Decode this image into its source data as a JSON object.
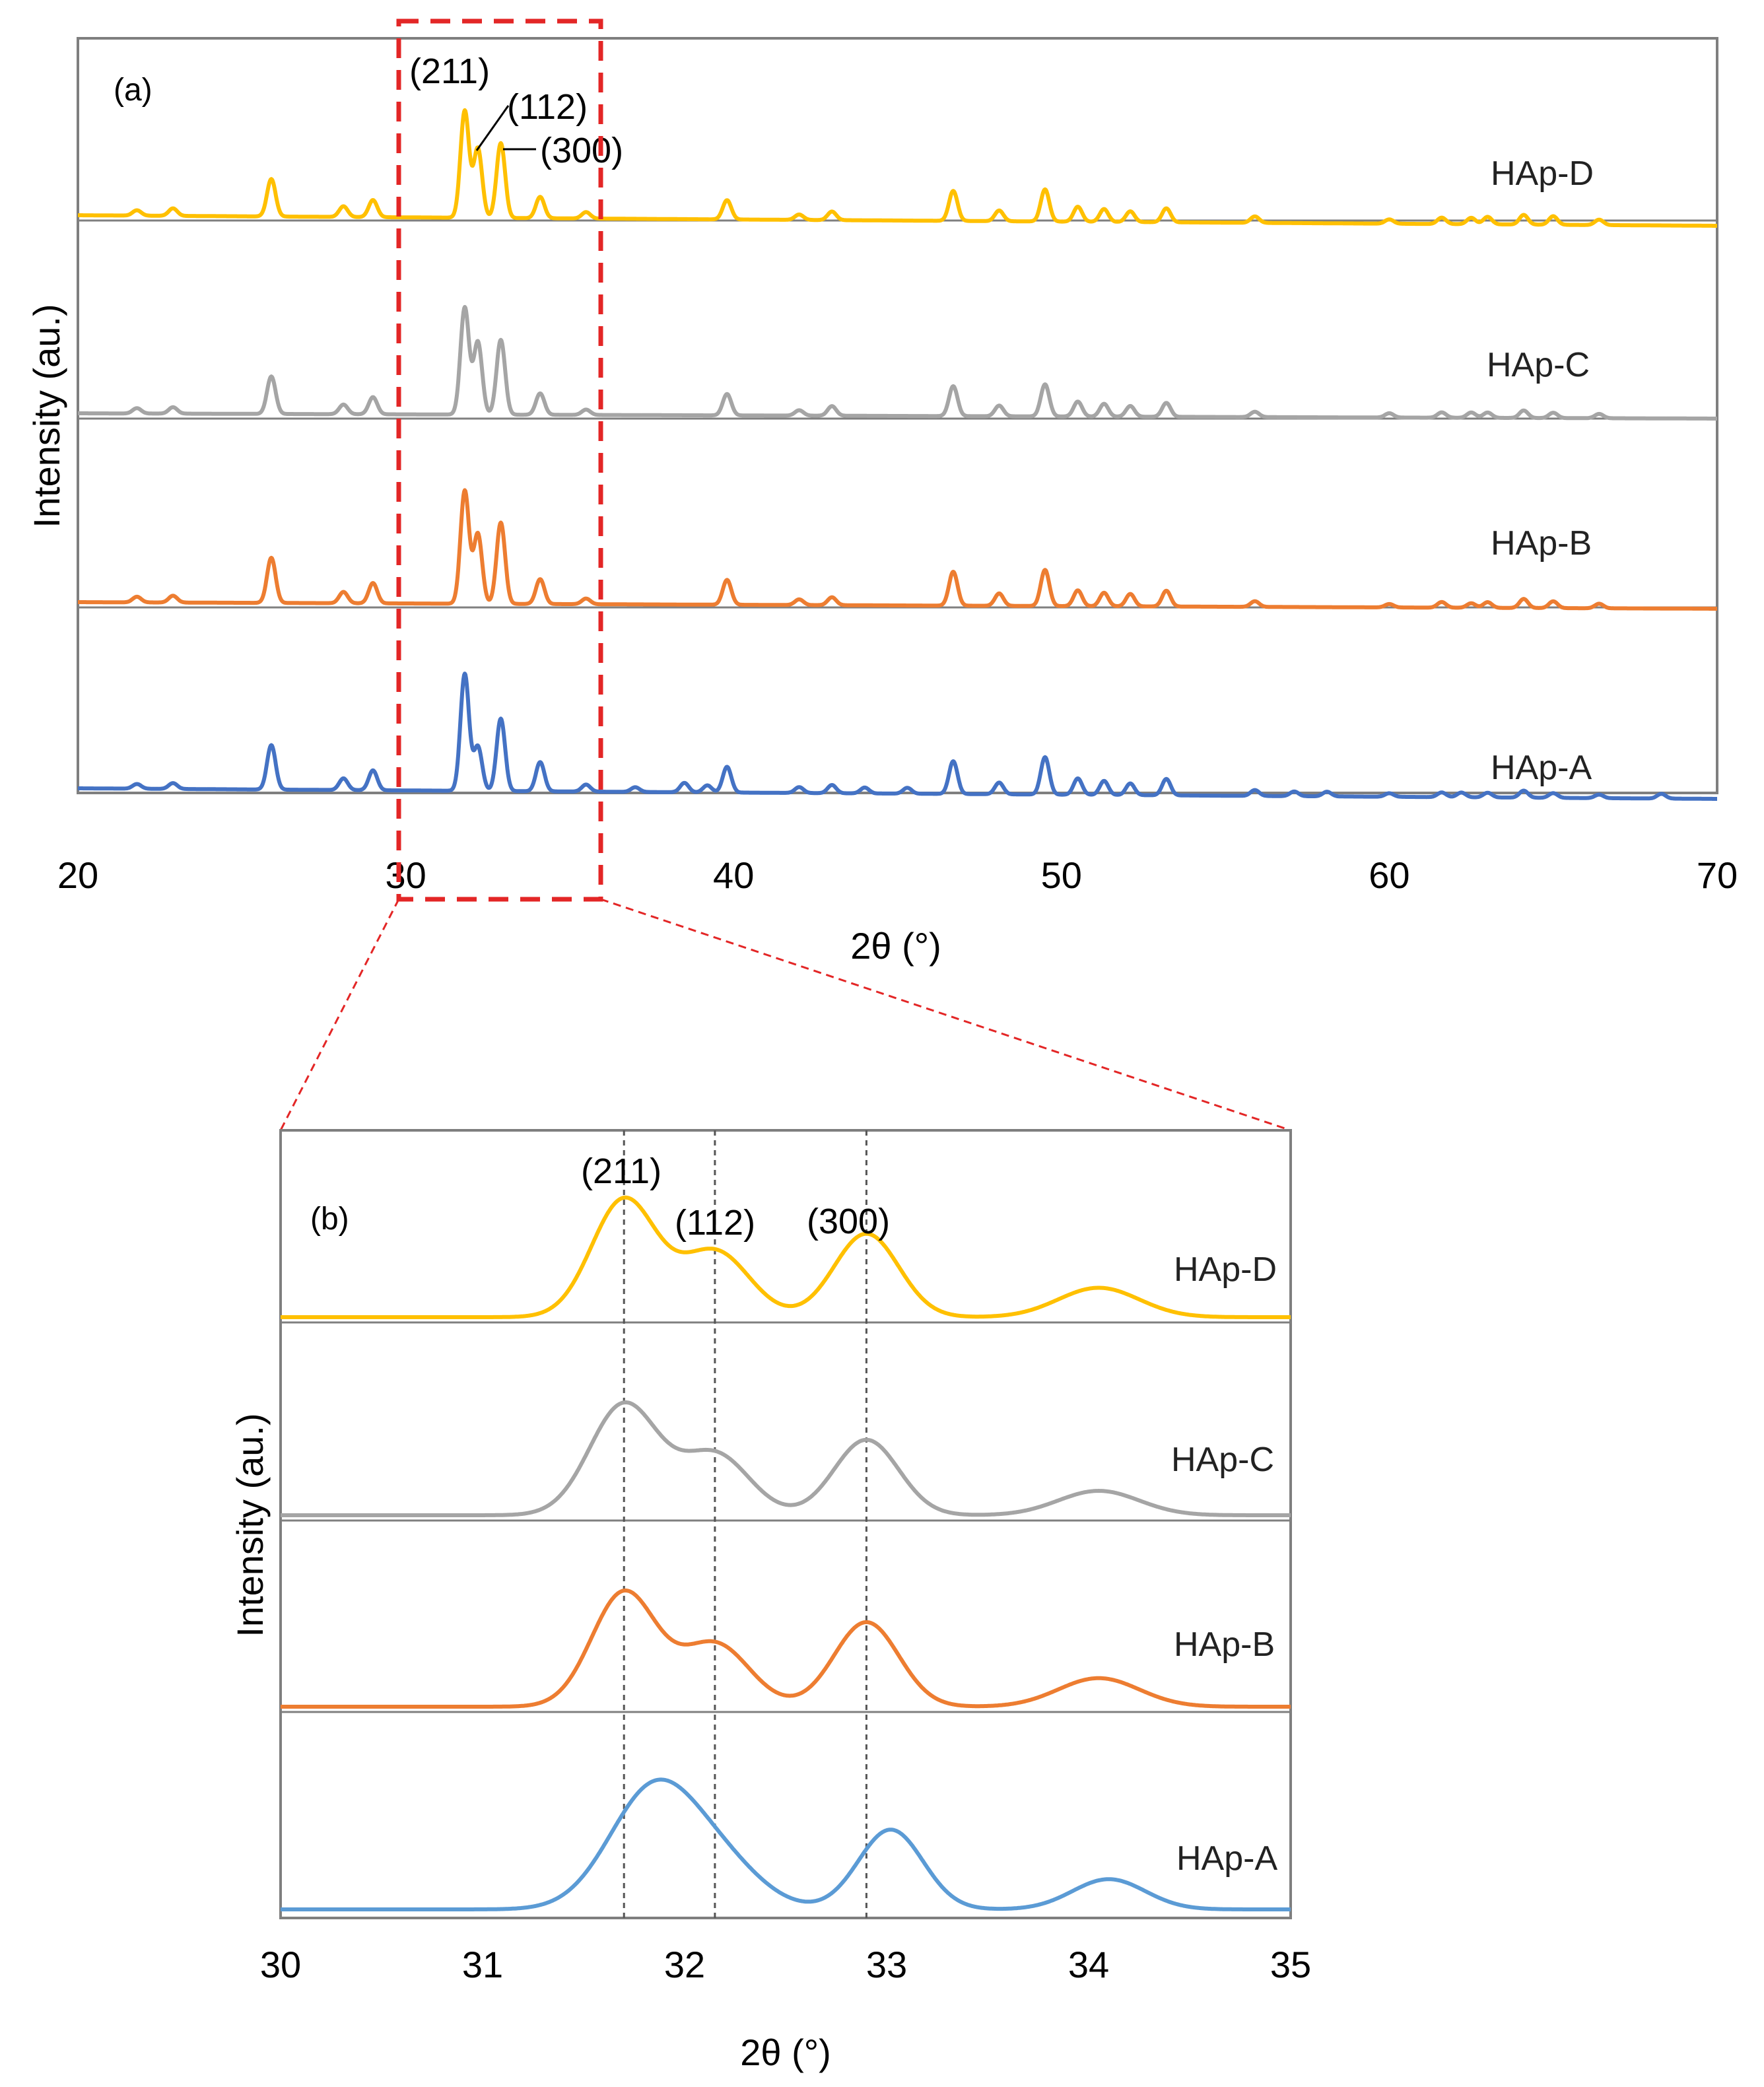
{
  "colors": {
    "HAp-A": "#4472C4",
    "HAp-B": "#ED7D31",
    "HAp-C": "#A5A5A5",
    "HAp-D": "#FFC000",
    "HAp-A-zoom": "#5B9BD5",
    "zoom_box": "#E32626"
  },
  "chart_data": [
    {
      "type": "line",
      "panel_label": "(a)",
      "xlabel": "2θ (°)",
      "ylabel": "Intensity (au.)",
      "xlim": [
        20,
        70
      ],
      "xticks": [
        20,
        30,
        40,
        50,
        60,
        70
      ],
      "zoom_region": [
        30,
        36
      ],
      "series": [
        {
          "name": "HAp-A",
          "label": "HAp-A",
          "peaks": [
            [
              21.8,
              4
            ],
            [
              22.9,
              5
            ],
            [
              25.9,
              38
            ],
            [
              28.1,
              10
            ],
            [
              29.0,
              17
            ],
            [
              31.8,
              100
            ],
            [
              32.2,
              38
            ],
            [
              32.9,
              62
            ],
            [
              34.1,
              25
            ],
            [
              35.5,
              6
            ],
            [
              37.0,
              4
            ],
            [
              38.5,
              8
            ],
            [
              39.2,
              6
            ],
            [
              39.8,
              22
            ],
            [
              42.0,
              5
            ],
            [
              43.0,
              7
            ],
            [
              44.0,
              5
            ],
            [
              45.3,
              5
            ],
            [
              46.7,
              28
            ],
            [
              48.1,
              10
            ],
            [
              49.5,
              32
            ],
            [
              50.5,
              14
            ],
            [
              51.3,
              12
            ],
            [
              52.1,
              10
            ],
            [
              53.2,
              14
            ],
            [
              55.9,
              5
            ],
            [
              57.1,
              4
            ],
            [
              58.1,
              4
            ],
            [
              60.0,
              3
            ],
            [
              61.6,
              4
            ],
            [
              62.2,
              4
            ],
            [
              63.0,
              4
            ],
            [
              64.1,
              6
            ],
            [
              65.0,
              4
            ],
            [
              66.4,
              3
            ],
            [
              68.3,
              4
            ]
          ]
        },
        {
          "name": "HAp-B",
          "label": "HAp-B",
          "peaks": [
            [
              21.8,
              5
            ],
            [
              22.9,
              6
            ],
            [
              25.9,
              40
            ],
            [
              28.1,
              10
            ],
            [
              29.0,
              18
            ],
            [
              31.8,
              100
            ],
            [
              32.2,
              62
            ],
            [
              32.9,
              72
            ],
            [
              34.1,
              22
            ],
            [
              35.5,
              5
            ],
            [
              39.8,
              22
            ],
            [
              42.0,
              5
            ],
            [
              43.0,
              7
            ],
            [
              46.7,
              30
            ],
            [
              48.1,
              11
            ],
            [
              49.5,
              32
            ],
            [
              50.5,
              14
            ],
            [
              51.3,
              12
            ],
            [
              52.1,
              11
            ],
            [
              53.2,
              14
            ],
            [
              55.9,
              5
            ],
            [
              60.0,
              3
            ],
            [
              61.6,
              5
            ],
            [
              62.5,
              4
            ],
            [
              63.0,
              5
            ],
            [
              64.1,
              8
            ],
            [
              65.0,
              6
            ],
            [
              66.4,
              4
            ]
          ]
        },
        {
          "name": "HAp-C",
          "label": "HAp-C",
          "peaks": [
            [
              21.8,
              5
            ],
            [
              22.9,
              6
            ],
            [
              25.9,
              35
            ],
            [
              28.1,
              9
            ],
            [
              29.0,
              16
            ],
            [
              31.8,
              100
            ],
            [
              32.2,
              68
            ],
            [
              32.9,
              70
            ],
            [
              34.1,
              20
            ],
            [
              35.5,
              5
            ],
            [
              39.8,
              20
            ],
            [
              42.0,
              5
            ],
            [
              43.0,
              9
            ],
            [
              46.7,
              28
            ],
            [
              48.1,
              10
            ],
            [
              49.5,
              30
            ],
            [
              50.5,
              14
            ],
            [
              51.3,
              12
            ],
            [
              52.1,
              10
            ],
            [
              53.2,
              13
            ],
            [
              55.9,
              5
            ],
            [
              60.0,
              4
            ],
            [
              61.6,
              5
            ],
            [
              62.5,
              5
            ],
            [
              63.0,
              5
            ],
            [
              64.1,
              7
            ],
            [
              65.0,
              5
            ],
            [
              66.4,
              4
            ]
          ]
        },
        {
          "name": "HAp-D",
          "label": "HAp-D",
          "peaks": [
            [
              21.8,
              5
            ],
            [
              22.9,
              7
            ],
            [
              25.9,
              35
            ],
            [
              28.1,
              10
            ],
            [
              29.0,
              16
            ],
            [
              31.8,
              100
            ],
            [
              32.2,
              65
            ],
            [
              32.9,
              70
            ],
            [
              34.1,
              20
            ],
            [
              35.5,
              6
            ],
            [
              39.8,
              18
            ],
            [
              42.0,
              5
            ],
            [
              43.0,
              8
            ],
            [
              46.7,
              28
            ],
            [
              48.1,
              10
            ],
            [
              49.5,
              30
            ],
            [
              50.5,
              14
            ],
            [
              51.3,
              12
            ],
            [
              52.1,
              10
            ],
            [
              53.2,
              13
            ],
            [
              55.9,
              6
            ],
            [
              60.0,
              4
            ],
            [
              61.6,
              6
            ],
            [
              62.5,
              6
            ],
            [
              63.0,
              7
            ],
            [
              64.1,
              9
            ],
            [
              65.0,
              8
            ],
            [
              66.4,
              5
            ]
          ]
        }
      ],
      "annotations": [
        "(211)",
        "(112)",
        "(300)"
      ]
    },
    {
      "type": "line",
      "panel_label": "(b)",
      "xlabel": "2θ (°)",
      "ylabel": "Intensity (au.)",
      "xlim": [
        30,
        35
      ],
      "xticks": [
        30,
        31,
        32,
        33,
        34,
        35
      ],
      "reference_lines": [
        31.7,
        32.15,
        32.9
      ],
      "series": [
        {
          "name": "HAp-A",
          "label": "HAp-A",
          "peaks": [
            [
              31.85,
              100,
              0.22
            ],
            [
              32.2,
              30,
              0.2
            ],
            [
              33.02,
              66,
              0.16
            ],
            [
              34.1,
              25,
              0.18
            ]
          ]
        },
        {
          "name": "HAp-B",
          "label": "HAp-B",
          "peaks": [
            [
              31.7,
              100,
              0.16
            ],
            [
              32.15,
              55,
              0.17
            ],
            [
              32.9,
              74,
              0.16
            ],
            [
              34.05,
              25,
              0.2
            ]
          ]
        },
        {
          "name": "HAp-C",
          "label": "HAp-C",
          "peaks": [
            [
              31.7,
              100,
              0.17
            ],
            [
              32.15,
              55,
              0.17
            ],
            [
              32.9,
              68,
              0.16
            ],
            [
              34.05,
              22,
              0.2
            ]
          ]
        },
        {
          "name": "HAp-D",
          "label": "HAp-D",
          "peaks": [
            [
              31.7,
              100,
              0.16
            ],
            [
              32.15,
              56,
              0.17
            ],
            [
              32.9,
              71,
              0.16
            ],
            [
              34.05,
              25,
              0.2
            ]
          ]
        }
      ],
      "annotations": [
        "(211)",
        "(112)",
        "(300)"
      ]
    }
  ]
}
